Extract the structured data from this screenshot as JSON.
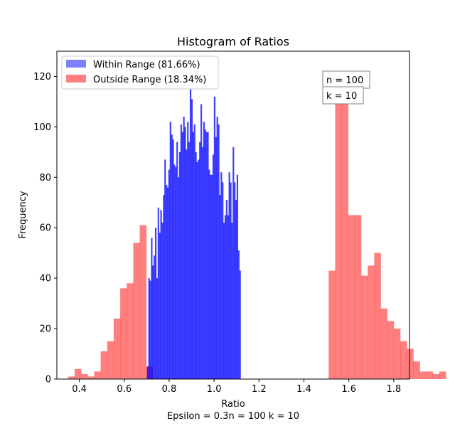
{
  "chart_data": {
    "type": "bar",
    "title": "Histogram of Ratios",
    "xlabel": "Ratio",
    "ylabel": "Frequency",
    "caption": "Epsilon = 0.3n = 100 k = 10",
    "xlim": [
      0.3,
      1.87
    ],
    "ylim": [
      0,
      130
    ],
    "xticks": [
      0.4,
      0.6,
      0.8,
      1.0,
      1.2,
      1.4,
      1.6,
      1.8
    ],
    "xtick_labels": [
      "0.4",
      "0.6",
      "0.8",
      "1.0",
      "1.2",
      "1.4",
      "1.6",
      "1.8"
    ],
    "yticks": [
      0,
      20,
      40,
      60,
      80,
      100,
      120
    ],
    "ytick_labels": [
      "0",
      "20",
      "40",
      "60",
      "80",
      "100",
      "120"
    ],
    "grid": false,
    "legend_position": "top-left",
    "annotations": [
      "n = 100",
      "k = 10"
    ],
    "series": [
      {
        "name": "Outside Range (18.34%)",
        "color": "#ff0000",
        "alpha": 0.5,
        "bin_start": 0.35,
        "bin_width": 0.029,
        "values": [
          1,
          4,
          2,
          1,
          3,
          11,
          15,
          24,
          36,
          38,
          54,
          61,
          5,
          0,
          0,
          0,
          0,
          0,
          0,
          0,
          0,
          0,
          0,
          0,
          0,
          0,
          0,
          0,
          0,
          0,
          0,
          0,
          0,
          0,
          0,
          0,
          0,
          0,
          0,
          0,
          43,
          117,
          112,
          65,
          65,
          41,
          45,
          50,
          28,
          23,
          20,
          15,
          12,
          7,
          3,
          3,
          2,
          3
        ]
      },
      {
        "name": "Within Range (81.66%)",
        "color": "#0000ff",
        "alpha": 0.75,
        "bin_start": 0.701,
        "bin_width": 0.00596,
        "values": [
          5,
          40,
          39,
          56,
          45,
          49,
          60,
          40,
          68,
          58,
          67,
          62,
          73,
          87,
          77,
          76,
          83,
          102,
          97,
          95,
          85,
          84,
          94,
          80,
          90,
          101,
          98,
          104,
          100,
          91,
          102,
          94,
          115,
          111,
          98,
          101,
          90,
          86,
          87,
          94,
          109,
          92,
          102,
          99,
          98,
          98,
          83,
          81,
          81,
          89,
          112,
          96,
          104,
          101,
          73,
          82,
          78,
          62,
          65,
          71,
          65,
          82,
          78,
          62,
          92,
          78,
          71,
          81,
          51,
          43
        ]
      }
    ]
  }
}
